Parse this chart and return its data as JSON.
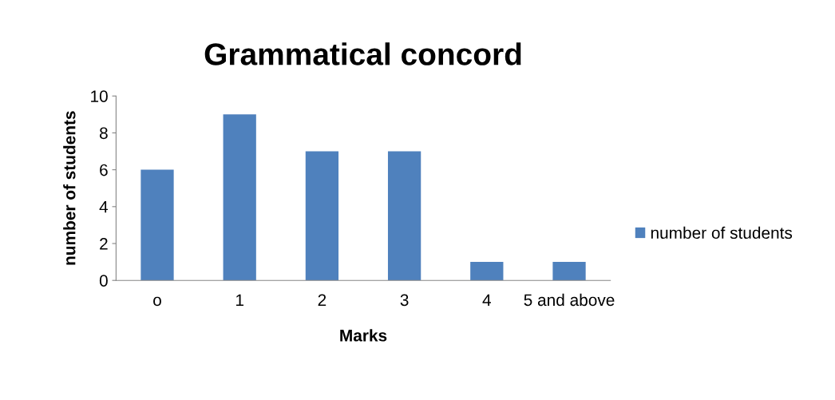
{
  "chart_data": {
    "type": "bar",
    "title": "Grammatical concord",
    "xlabel": "Marks",
    "ylabel": "number of students",
    "categories": [
      "o",
      "1",
      "2",
      "3",
      "4",
      "5 and above"
    ],
    "series": [
      {
        "name": "number of students",
        "color": "#4f81bd",
        "values": [
          6,
          9,
          7,
          7,
          1,
          1
        ]
      }
    ],
    "ylim": [
      0,
      10
    ],
    "yticks": [
      0,
      2,
      4,
      6,
      8,
      10
    ],
    "grid": false,
    "legend": "right"
  }
}
